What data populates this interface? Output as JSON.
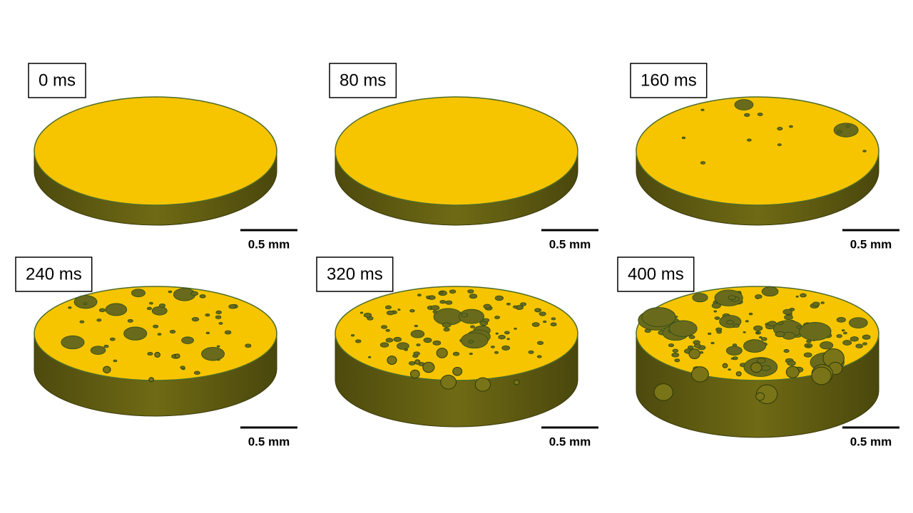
{
  "panels": [
    {
      "label": "0 ms",
      "scale": "0.5 mm"
    },
    {
      "label": "80 ms",
      "scale": "0.5 mm"
    },
    {
      "label": "160 ms",
      "scale": "0.5 mm"
    },
    {
      "label": "240 ms",
      "scale": "0.5 mm"
    },
    {
      "label": "320 ms",
      "scale": "0.5 mm"
    },
    {
      "label": "400 ms",
      "scale": "0.5 mm"
    }
  ]
}
